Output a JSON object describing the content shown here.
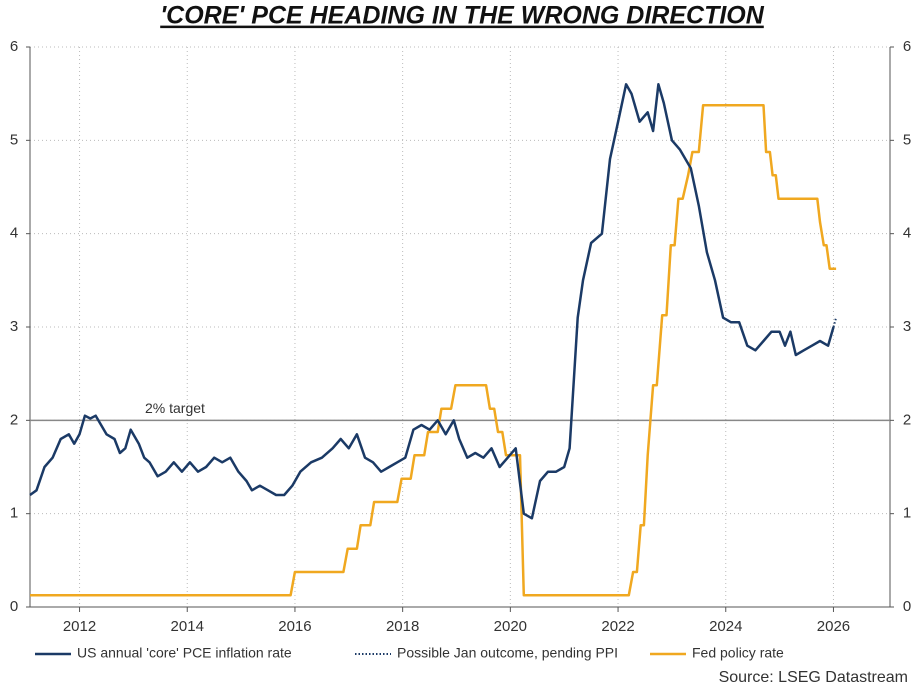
{
  "chart_data": {
    "type": "line",
    "title": "'CORE' PCE HEADING IN THE WRONG DIRECTION",
    "source": "Source: LSEG Datastream",
    "xlim": [
      2011.08,
      2027.05
    ],
    "xticks": [
      2012,
      2014,
      2016,
      2018,
      2020,
      2022,
      2024,
      2026
    ],
    "ylim": [
      0,
      6
    ],
    "yticks": [
      0,
      1,
      2,
      3,
      4,
      5,
      6
    ],
    "y2lim": [
      0,
      6
    ],
    "y2ticks": [
      0,
      1,
      2,
      3,
      4,
      5,
      6
    ],
    "grid": true,
    "reference_lines": [
      {
        "value": 2,
        "label": "2% target",
        "color": "#888888"
      }
    ],
    "series": [
      {
        "name": "US annual 'core' PCE inflation rate",
        "color": "#1b3a66",
        "style": "solid",
        "x": [
          2011.08,
          2011.2,
          2011.35,
          2011.5,
          2011.65,
          2011.8,
          2011.9,
          2012.0,
          2012.1,
          2012.2,
          2012.3,
          2012.5,
          2012.65,
          2012.75,
          2012.85,
          2012.95,
          2013.1,
          2013.2,
          2013.3,
          2013.45,
          2013.6,
          2013.75,
          2013.9,
          2014.05,
          2014.2,
          2014.35,
          2014.5,
          2014.65,
          2014.8,
          2014.95,
          2015.1,
          2015.2,
          2015.35,
          2015.5,
          2015.65,
          2015.8,
          2015.95,
          2016.1,
          2016.3,
          2016.5,
          2016.7,
          2016.85,
          2017.0,
          2017.15,
          2017.3,
          2017.45,
          2017.6,
          2017.75,
          2017.9,
          2018.05,
          2018.2,
          2018.35,
          2018.5,
          2018.65,
          2018.8,
          2018.95,
          2019.05,
          2019.2,
          2019.35,
          2019.5,
          2019.65,
          2019.8,
          2019.95,
          2020.1,
          2020.25,
          2020.4,
          2020.55,
          2020.7,
          2020.85,
          2021.0,
          2021.1,
          2021.25,
          2021.35,
          2021.5,
          2021.7,
          2021.85,
          2022.0,
          2022.15,
          2022.25,
          2022.4,
          2022.55,
          2022.65,
          2022.75,
          2022.85,
          2023.0,
          2023.15,
          2023.35,
          2023.5,
          2023.65,
          2023.8,
          2023.95,
          2024.1,
          2024.25,
          2024.4,
          2024.55,
          2024.7,
          2024.85,
          2025.0,
          2025.1,
          2025.2,
          2025.3,
          2025.45,
          2025.6,
          2025.75,
          2025.9,
          2026.0
        ],
        "values": [
          1.2,
          1.25,
          1.5,
          1.6,
          1.8,
          1.85,
          1.75,
          1.85,
          2.05,
          2.02,
          2.05,
          1.85,
          1.8,
          1.65,
          1.7,
          1.9,
          1.75,
          1.6,
          1.55,
          1.4,
          1.45,
          1.55,
          1.45,
          1.55,
          1.45,
          1.5,
          1.6,
          1.55,
          1.6,
          1.45,
          1.35,
          1.25,
          1.3,
          1.25,
          1.2,
          1.2,
          1.3,
          1.45,
          1.55,
          1.6,
          1.7,
          1.8,
          1.7,
          1.85,
          1.6,
          1.55,
          1.45,
          1.5,
          1.55,
          1.6,
          1.9,
          1.95,
          1.9,
          2.0,
          1.85,
          2.0,
          1.8,
          1.6,
          1.65,
          1.6,
          1.7,
          1.5,
          1.6,
          1.7,
          1.0,
          0.95,
          1.35,
          1.45,
          1.45,
          1.5,
          1.7,
          3.1,
          3.5,
          3.9,
          4.0,
          4.8,
          5.2,
          5.6,
          5.5,
          5.2,
          5.3,
          5.1,
          5.6,
          5.4,
          5.0,
          4.9,
          4.7,
          4.3,
          3.8,
          3.5,
          3.1,
          3.05,
          3.05,
          2.8,
          2.75,
          2.85,
          2.95,
          2.95,
          2.8,
          2.95,
          2.7,
          2.75,
          2.8,
          2.85,
          2.8,
          3.0
        ]
      },
      {
        "name": "Possible Jan outcome, pending PPI",
        "color": "#1b3a66",
        "style": "dotted",
        "x": [
          2026.0,
          2026.05
        ],
        "values": [
          3.0,
          3.1
        ]
      },
      {
        "name": "Fed policy rate",
        "color": "#f0a820",
        "style": "solid",
        "x": [
          2011.08,
          2015.92,
          2016.0,
          2016.9,
          2016.98,
          2017.15,
          2017.22,
          2017.4,
          2017.47,
          2017.9,
          2017.98,
          2018.15,
          2018.22,
          2018.4,
          2018.47,
          2018.65,
          2018.72,
          2018.9,
          2018.98,
          2019.55,
          2019.62,
          2019.7,
          2019.77,
          2019.85,
          2019.92,
          2020.18,
          2020.25,
          2022.2,
          2022.28,
          2022.35,
          2022.42,
          2022.48,
          2022.55,
          2022.65,
          2022.72,
          2022.82,
          2022.9,
          2022.98,
          2023.05,
          2023.12,
          2023.2,
          2023.3,
          2023.38,
          2023.5,
          2023.58,
          2024.7,
          2024.75,
          2024.82,
          2024.87,
          2024.93,
          2024.98,
          2025.7,
          2025.75,
          2025.82,
          2025.87,
          2025.93,
          2025.98,
          2026.05
        ],
        "values": [
          0.125,
          0.125,
          0.375,
          0.375,
          0.625,
          0.625,
          0.875,
          0.875,
          1.125,
          1.125,
          1.375,
          1.375,
          1.625,
          1.625,
          1.875,
          1.875,
          2.125,
          2.125,
          2.375,
          2.375,
          2.125,
          2.125,
          1.875,
          1.875,
          1.625,
          1.625,
          0.125,
          0.125,
          0.375,
          0.375,
          0.875,
          0.875,
          1.625,
          2.375,
          2.375,
          3.125,
          3.125,
          3.875,
          3.875,
          4.375,
          4.375,
          4.625,
          4.875,
          4.875,
          5.375,
          5.375,
          4.875,
          4.875,
          4.625,
          4.625,
          4.375,
          4.375,
          4.125,
          3.875,
          3.875,
          3.625,
          3.625,
          3.625
        ]
      }
    ]
  }
}
